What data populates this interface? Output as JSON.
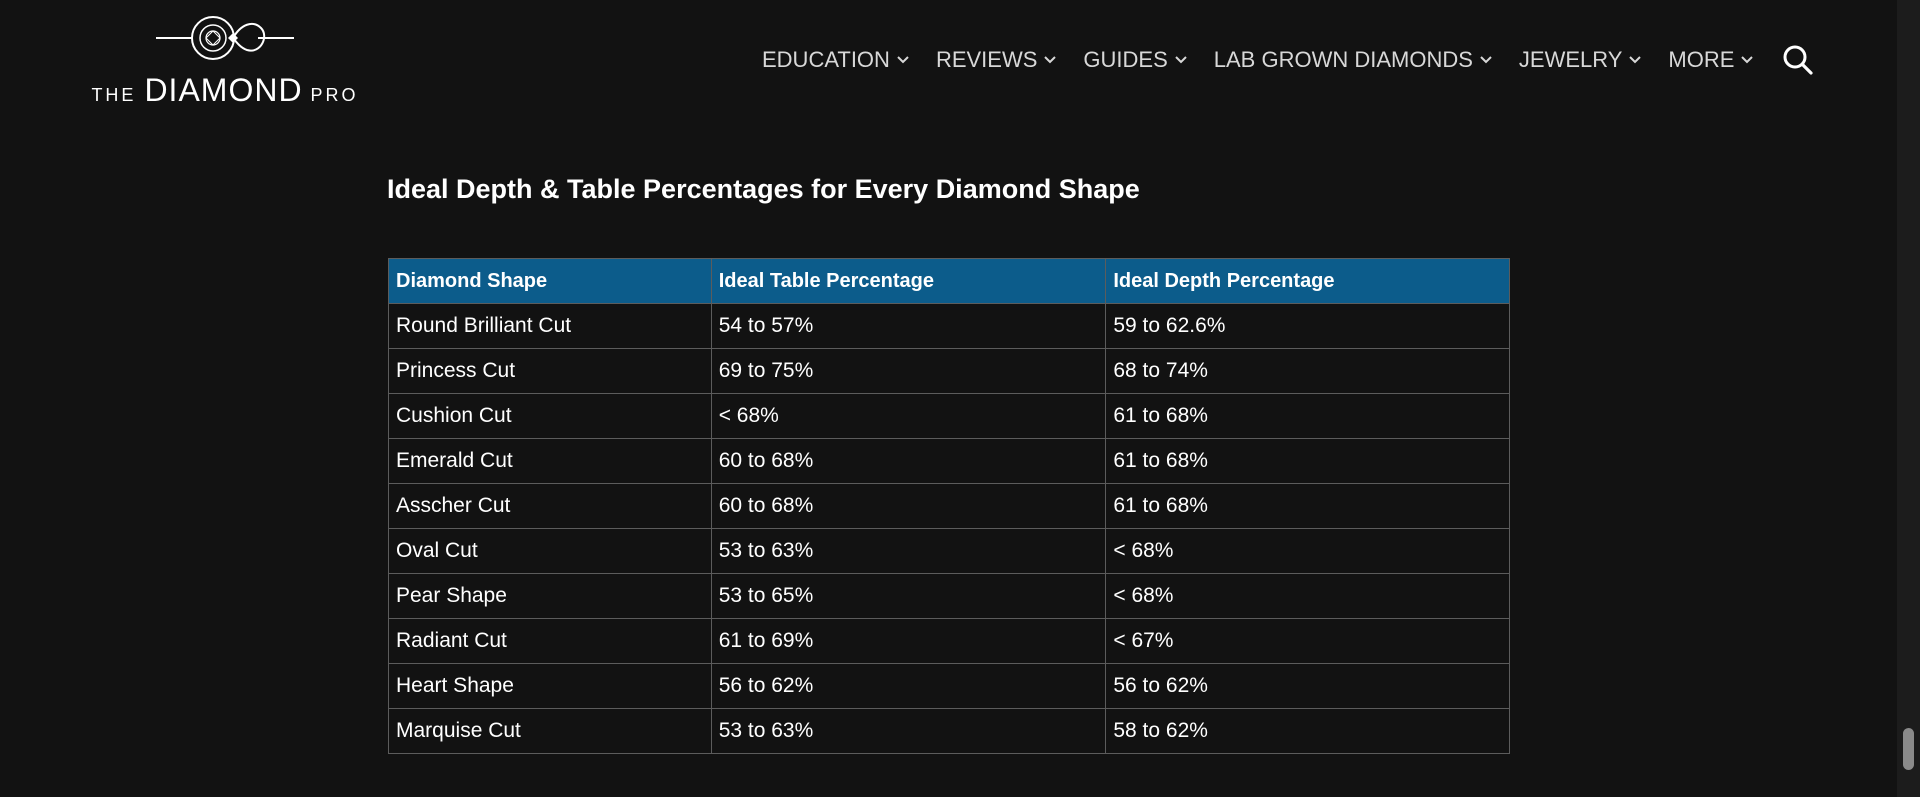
{
  "header": {
    "logo": {
      "the": "THE",
      "diamond": "DIAMOND",
      "pro": "PRO"
    },
    "nav": [
      {
        "label": "EDUCATION"
      },
      {
        "label": "REVIEWS"
      },
      {
        "label": "GUIDES"
      },
      {
        "label": "LAB GROWN DIAMONDS"
      },
      {
        "label": "JEWELRY"
      },
      {
        "label": "MORE"
      }
    ],
    "search_icon": "search-icon"
  },
  "main": {
    "heading": "Ideal Depth & Table Percentages for Every Diamond Shape",
    "table": {
      "columns": [
        "Diamond Shape",
        "Ideal Table Percentage",
        "Ideal Depth Percentage"
      ],
      "rows": [
        [
          "Round Brilliant Cut",
          "54 to 57%",
          "59 to 62.6%"
        ],
        [
          "Princess Cut",
          "69 to 75%",
          "68 to 74%"
        ],
        [
          "Cushion Cut",
          "< 68%",
          "61 to 68%"
        ],
        [
          "Emerald Cut",
          "60 to 68%",
          "61 to 68%"
        ],
        [
          "Asscher Cut",
          "60 to 68%",
          "61 to 68%"
        ],
        [
          "Oval Cut",
          "53 to 63%",
          "< 68%"
        ],
        [
          "Pear Shape",
          "53 to 65%",
          "< 68%"
        ],
        [
          "Radiant Cut",
          "61 to 69%",
          "< 67%"
        ],
        [
          "Heart Shape",
          "56 to 62%",
          "56 to 62%"
        ],
        [
          "Marquise Cut",
          "53 to 63%",
          "58 to 62%"
        ]
      ]
    }
  },
  "colors": {
    "background": "#121212",
    "table_header": "#0c5c8b",
    "text": "#ffffff"
  }
}
